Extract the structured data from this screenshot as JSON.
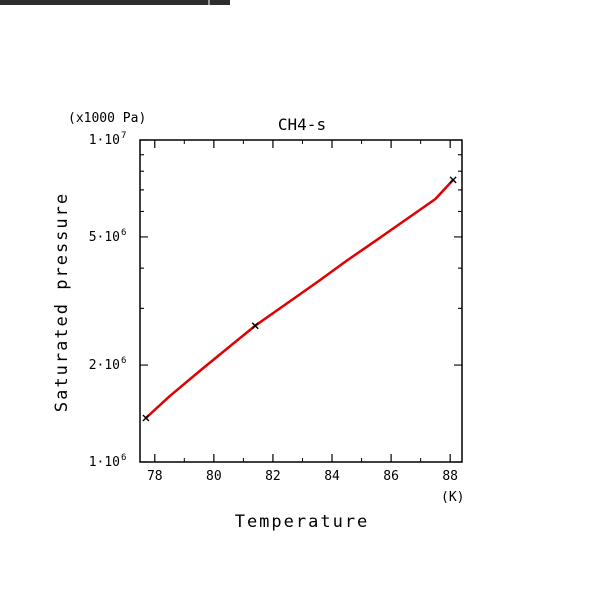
{
  "window": {
    "strip_color": "#2e2e2e"
  },
  "chart_data": {
    "type": "line",
    "title": "CH4-s",
    "xlabel": "Temperature",
    "ylabel": "Saturated pressure",
    "y_unit": "(x1000 Pa)",
    "x_unit": "(K)",
    "xlim": [
      77.5,
      88.4
    ],
    "ylim": [
      1000000,
      10000000
    ],
    "y_scale": "log",
    "x_ticks": [
      78,
      80,
      82,
      84,
      86,
      88
    ],
    "x_tick_labels": [
      "78",
      "80",
      "82",
      "84",
      "86",
      "88"
    ],
    "y_tick_labels": [
      {
        "value": 1000000,
        "mantissa": "1",
        "exp": "6"
      },
      {
        "value": 2000000,
        "mantissa": "2",
        "exp": "6"
      },
      {
        "value": 5000000,
        "mantissa": "5",
        "exp": "6"
      },
      {
        "value": 10000000,
        "mantissa": "1",
        "exp": "7"
      }
    ],
    "grid": false,
    "series": [
      {
        "color": "#e00000",
        "x": [
          77.7,
          78.5,
          79.5,
          80.5,
          81.4,
          82.5,
          83.5,
          84.5,
          85.5,
          86.5,
          87.5,
          88.1
        ],
        "y": [
          1370000,
          1600000,
          1910000,
          2270000,
          2650000,
          3120000,
          3620000,
          4220000,
          4880000,
          5660000,
          6560000,
          7520000
        ]
      }
    ],
    "markers": {
      "symbol": "x",
      "x": [
        77.7,
        81.4,
        88.1
      ],
      "y": [
        1370000,
        2650000,
        7520000
      ]
    }
  }
}
